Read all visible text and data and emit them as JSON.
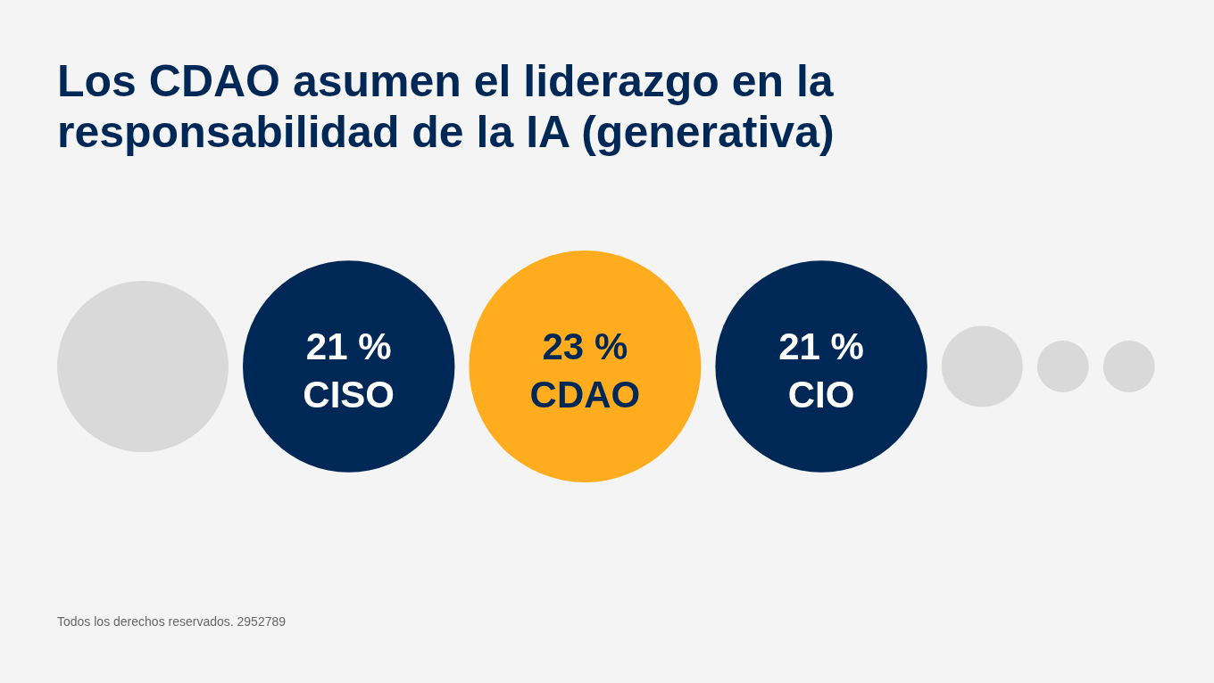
{
  "chart_data": {
    "type": "other",
    "title": "Los CDAO asumen el liderazgo en la responsabilidad de la IA (generativa)",
    "categories": [
      "CISO",
      "CDAO",
      "CIO"
    ],
    "values": [
      21,
      23,
      21
    ],
    "colors": [
      "#002856",
      "#ffad1f",
      "#002856"
    ],
    "value_labels": [
      "21 %",
      "23 %",
      "21 %"
    ],
    "annotations": [
      "Todos los derechos reservados. 2952789"
    ]
  }
}
